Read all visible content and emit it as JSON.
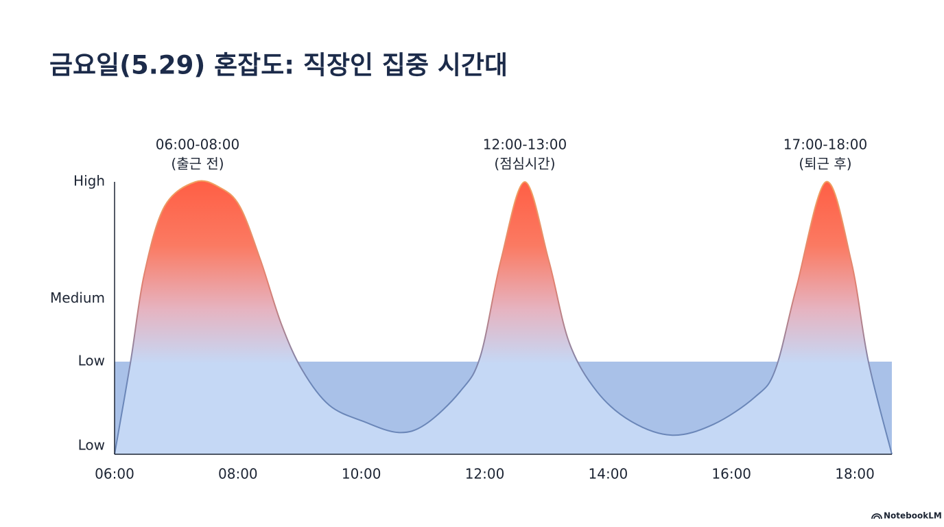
{
  "chart_data": {
    "type": "area",
    "title": "금요일(5.29) 혼잡도: 직장인 집중 시간대",
    "x": [
      6,
      6.26,
      6.48,
      6.81,
      7.31,
      7.7,
      8.03,
      8.37,
      8.7,
      9.04,
      9.48,
      10.04,
      10.6,
      11.04,
      11.6,
      11.93,
      12.26,
      12.65,
      13.04,
      13.37,
      13.82,
      14.38,
      15.04,
      15.71,
      16.38,
      16.71,
      17.05,
      17.53,
      17.94,
      18.22,
      18.6
    ],
    "values": [
      0,
      34,
      66,
      91,
      100,
      98,
      91,
      71,
      48,
      31,
      18,
      12,
      8,
      11,
      23,
      36,
      71,
      100,
      71,
      41,
      23,
      12,
      7,
      11,
      21,
      31,
      61,
      100,
      71,
      34,
      0
    ],
    "color": "#6a86b8",
    "band": {
      "value": 34,
      "color": "#a9c1e8"
    },
    "xlim": [
      6,
      18.6
    ],
    "xticks": [
      {
        "value": 6,
        "label": "06:00"
      },
      {
        "value": 8,
        "label": "08:00"
      },
      {
        "value": 10,
        "label": "10:00"
      },
      {
        "value": 12,
        "label": "12:00"
      },
      {
        "value": 14,
        "label": "14:00"
      },
      {
        "value": 16,
        "label": "16:00"
      },
      {
        "value": 18,
        "label": "18:00"
      }
    ],
    "ylim": [
      0,
      100
    ],
    "yticks": [
      {
        "value": 3,
        "label": "Low"
      },
      {
        "value": 34,
        "label": "Low"
      },
      {
        "value": 57,
        "label": "Medium"
      },
      {
        "value": 100,
        "label": "High"
      }
    ],
    "annotations": [
      [
        "06:00-08:00",
        "(출근 전)"
      ],
      [
        "12:00-13:00",
        "(점심시간)"
      ],
      [
        "17:00-18:00",
        "(퇴근 후)"
      ]
    ],
    "footer": "NotebookLM"
  }
}
